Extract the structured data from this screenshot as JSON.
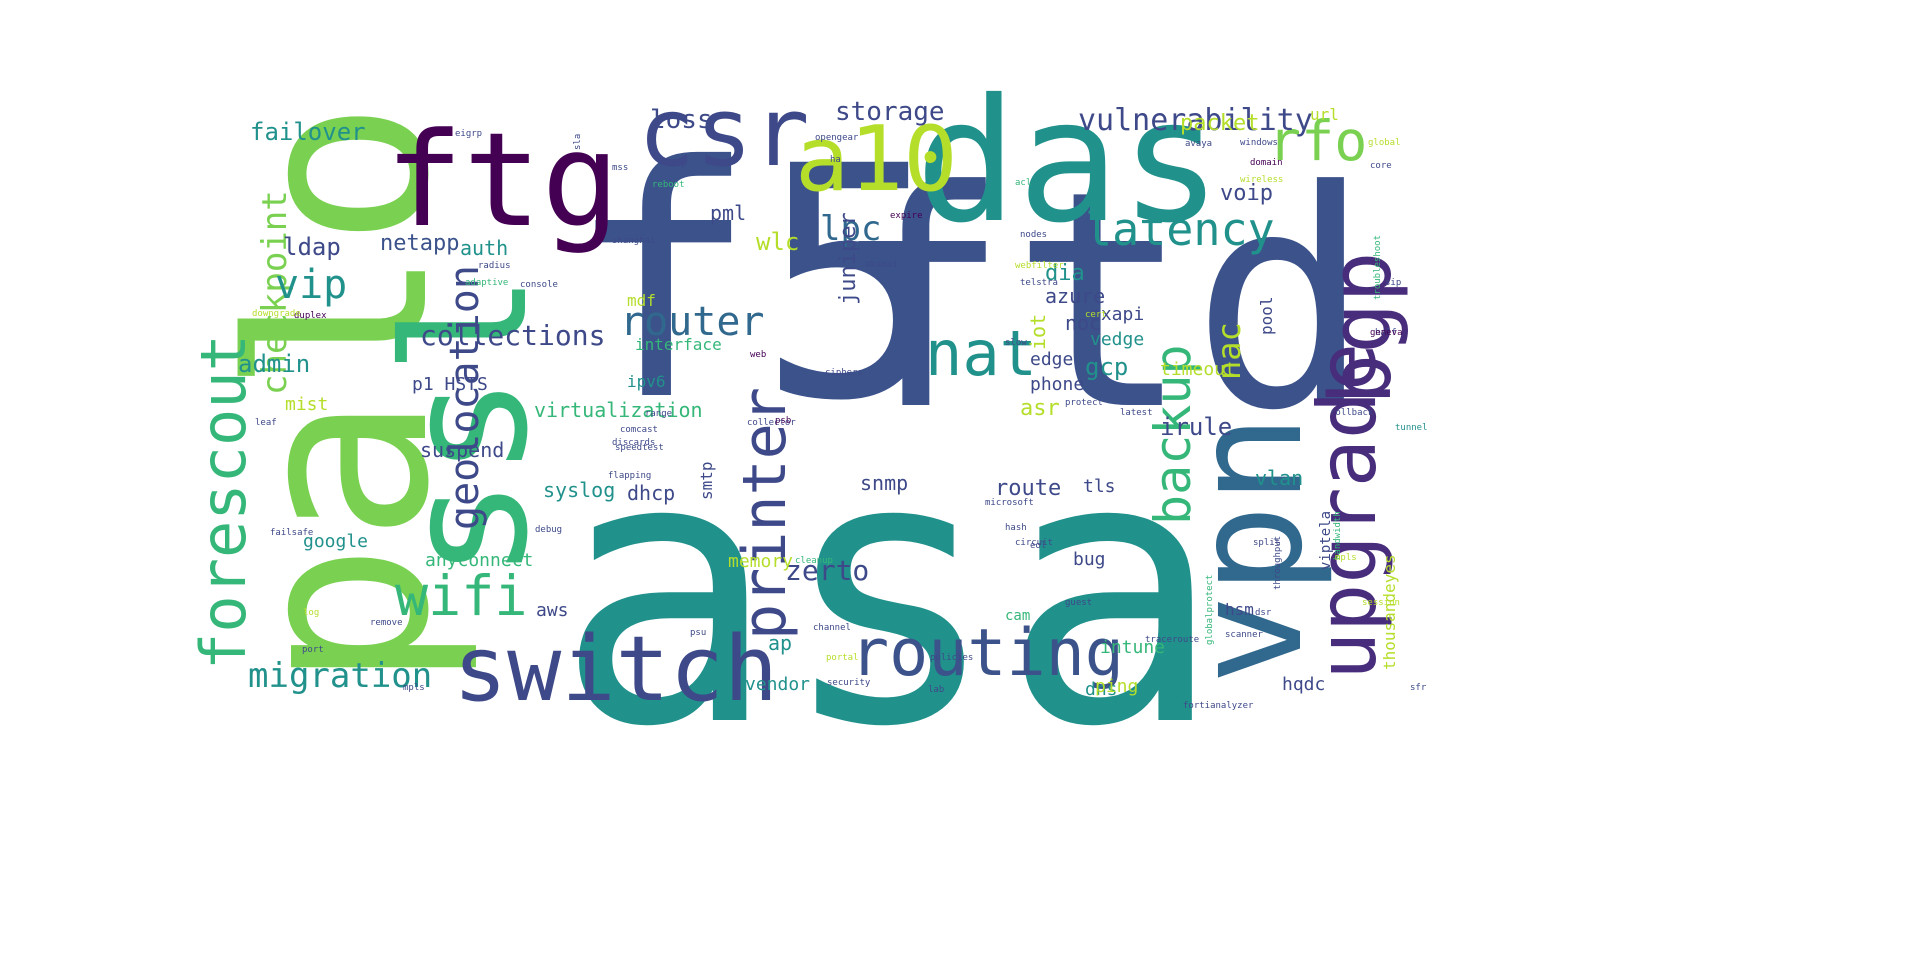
{
  "words": [
    {
      "text": "asa",
      "size": 370,
      "color": "#21918c"
    },
    {
      "text": "f5",
      "size": 320,
      "color": "#3b528b"
    },
    {
      "text": "ftd",
      "size": 300,
      "color": "#3b528b"
    },
    {
      "text": "palo",
      "size": 245,
      "color": "#7ad151"
    },
    {
      "text": "ssl",
      "size": 170,
      "color": "#35b779"
    },
    {
      "text": "das",
      "size": 170,
      "color": "#21918c"
    },
    {
      "text": "vpn",
      "size": 150,
      "color": "#31688e"
    },
    {
      "text": "ftg",
      "size": 130,
      "color": "#440154"
    },
    {
      "text": "csr",
      "size": 95,
      "color": "#3e4989"
    },
    {
      "text": "switch",
      "size": 90,
      "color": "#3e4989"
    },
    {
      "text": "a10",
      "size": 90,
      "color": "#b5de2b"
    },
    {
      "text": "bgp",
      "size": 85,
      "color": "#472d7b"
    },
    {
      "text": "upgrade",
      "size": 80,
      "color": "#472d7b"
    },
    {
      "text": "routing",
      "size": 65,
      "color": "#3b528b"
    },
    {
      "text": "forescout",
      "size": 62,
      "color": "#35b779"
    },
    {
      "text": "printer",
      "size": 60,
      "color": "#3e4989"
    },
    {
      "text": "nat",
      "size": 62,
      "color": "#21918c"
    },
    {
      "text": "rfo",
      "size": 55,
      "color": "#7ad151"
    },
    {
      "text": "wifi",
      "size": 55,
      "color": "#35b779"
    },
    {
      "text": "backup",
      "size": 50,
      "color": "#35b779"
    },
    {
      "text": "latency",
      "size": 45,
      "color": "#21918c"
    },
    {
      "text": "geolocation",
      "size": 40,
      "color": "#3e4989"
    },
    {
      "text": "router",
      "size": 40,
      "color": "#31688e"
    },
    {
      "text": "checkpoint",
      "size": 34,
      "color": "#7ad151"
    },
    {
      "text": "migration",
      "size": 34,
      "color": "#21918c"
    },
    {
      "text": "vip",
      "size": 40,
      "color": "#21918c"
    },
    {
      "text": "lpc",
      "size": 34,
      "color": "#31688e"
    },
    {
      "text": "vulnerability",
      "size": 30,
      "color": "#3e4989"
    },
    {
      "text": "nac",
      "size": 32,
      "color": "#b5de2b"
    },
    {
      "text": "collections",
      "size": 28,
      "color": "#3e4989"
    },
    {
      "text": "storage",
      "size": 26,
      "color": "#3e4989"
    },
    {
      "text": "failover",
      "size": 24,
      "color": "#21918c"
    },
    {
      "text": "loss",
      "size": 26,
      "color": "#3e4989"
    },
    {
      "text": "netapp",
      "size": 22,
      "color": "#3b528b"
    },
    {
      "text": "admin",
      "size": 24,
      "color": "#21918c"
    },
    {
      "text": "zerto",
      "size": 28,
      "color": "#3e4989"
    },
    {
      "text": "gcp",
      "size": 24,
      "color": "#21918c"
    },
    {
      "text": "wlc",
      "size": 24,
      "color": "#b5de2b"
    },
    {
      "text": "dia",
      "size": 22,
      "color": "#21918c"
    },
    {
      "text": "packet",
      "size": 22,
      "color": "#b5de2b"
    },
    {
      "text": "voip",
      "size": 22,
      "color": "#3e4989"
    },
    {
      "text": "irule",
      "size": 24,
      "color": "#3e4989"
    },
    {
      "text": "juniper",
      "size": 22,
      "color": "#3e4989"
    },
    {
      "text": "ldap",
      "size": 24,
      "color": "#3e4989"
    },
    {
      "text": "pml",
      "size": 20,
      "color": "#3e4989"
    },
    {
      "text": "auth",
      "size": 20,
      "color": "#21918c"
    },
    {
      "text": "azure",
      "size": 20,
      "color": "#3e4989"
    },
    {
      "text": "noc",
      "size": 20,
      "color": "#3e4989"
    },
    {
      "text": "vedge",
      "size": 18,
      "color": "#21918c"
    },
    {
      "text": "nxapi",
      "size": 18,
      "color": "#3e4989"
    },
    {
      "text": "iot",
      "size": 20,
      "color": "#b5de2b"
    },
    {
      "text": "asr",
      "size": 22,
      "color": "#b5de2b"
    },
    {
      "text": "edge",
      "size": 18,
      "color": "#3e4989"
    },
    {
      "text": "phone",
      "size": 18,
      "color": "#3e4989"
    },
    {
      "text": "timeout",
      "size": 18,
      "color": "#b5de2b"
    },
    {
      "text": "virtualization",
      "size": 20,
      "color": "#35b779"
    },
    {
      "text": "suspend",
      "size": 20,
      "color": "#3e4989"
    },
    {
      "text": "syslog",
      "size": 20,
      "color": "#21918c"
    },
    {
      "text": "dhcp",
      "size": 20,
      "color": "#3e4989"
    },
    {
      "text": "snmp",
      "size": 20,
      "color": "#3e4989"
    },
    {
      "text": "route",
      "size": 22,
      "color": "#3e4989"
    },
    {
      "text": "tls",
      "size": 18,
      "color": "#3e4989"
    },
    {
      "text": "vlan",
      "size": 20,
      "color": "#21918c"
    },
    {
      "text": "bug",
      "size": 18,
      "color": "#3e4989"
    },
    {
      "text": "google",
      "size": 18,
      "color": "#21918c"
    },
    {
      "text": "anyconnect",
      "size": 18,
      "color": "#35b779"
    },
    {
      "text": "memory",
      "size": 18,
      "color": "#b5de2b"
    },
    {
      "text": "aws",
      "size": 18,
      "color": "#3e4989"
    },
    {
      "text": "ap",
      "size": 20,
      "color": "#21918c"
    },
    {
      "text": "vendor",
      "size": 18,
      "color": "#21918c"
    },
    {
      "text": "intune",
      "size": 18,
      "color": "#35b779"
    },
    {
      "text": "hqdc",
      "size": 18,
      "color": "#3e4989"
    },
    {
      "text": "dns",
      "size": 18,
      "color": "#21918c"
    },
    {
      "text": "ping",
      "size": 18,
      "color": "#b5de2b"
    },
    {
      "text": "hsm",
      "size": 16,
      "color": "#3e4989"
    },
    {
      "text": "mist",
      "size": 18,
      "color": "#b5de2b"
    },
    {
      "text": "p1 HSTS",
      "size": 18,
      "color": "#3e4989"
    },
    {
      "text": "ipv6",
      "size": 16,
      "color": "#21918c"
    },
    {
      "text": "mdf",
      "size": 16,
      "color": "#b5de2b"
    },
    {
      "text": "interface",
      "size": 16,
      "color": "#35b779"
    },
    {
      "text": "smtp",
      "size": 16,
      "color": "#3e4989"
    },
    {
      "text": "pool",
      "size": 16,
      "color": "#3e4989"
    },
    {
      "text": "url",
      "size": 16,
      "color": "#b5de2b"
    },
    {
      "text": "thousandeyes",
      "size": 16,
      "color": "#b5de2b"
    },
    {
      "text": "viptela",
      "size": 14,
      "color": "#3e4989"
    },
    {
      "text": "cam",
      "size": 14,
      "color": "#35b779"
    },
    {
      "text": "shanghai",
      "size": 9,
      "color": "#3e4989"
    },
    {
      "text": "radius",
      "size": 9,
      "color": "#3e4989"
    },
    {
      "text": "adaptive",
      "size": 9,
      "color": "#35b779"
    },
    {
      "text": "duplex",
      "size": 9,
      "color": "#440154"
    },
    {
      "text": "downgrade",
      "size": 9,
      "color": "#b5de2b"
    },
    {
      "text": "console",
      "size": 9,
      "color": "#3e4989"
    },
    {
      "text": "debug",
      "size": 9,
      "color": "#3e4989"
    },
    {
      "text": "discards",
      "size": 9,
      "color": "#3e4989"
    },
    {
      "text": "speedtest",
      "size": 9,
      "color": "#3e4989"
    },
    {
      "text": "flapping",
      "size": 9,
      "color": "#3e4989"
    },
    {
      "text": "cleanup",
      "size": 9,
      "color": "#35b779"
    },
    {
      "text": "fortianalyzer",
      "size": 9,
      "color": "#3e4989"
    },
    {
      "text": "globalprotect",
      "size": 9,
      "color": "#35b779"
    },
    {
      "text": "throughput",
      "size": 9,
      "color": "#3e4989"
    },
    {
      "text": "bandwidth",
      "size": 9,
      "color": "#35b779"
    },
    {
      "text": "rollback",
      "size": 9,
      "color": "#3e4989"
    },
    {
      "text": "tunnel",
      "size": 9,
      "color": "#21918c"
    },
    {
      "text": "troubleshoot",
      "size": 9,
      "color": "#35b779"
    },
    {
      "text": "wireless",
      "size": 9,
      "color": "#b5de2b"
    },
    {
      "text": "traceroute",
      "size": 9,
      "color": "#3e4989"
    },
    {
      "text": "microsoft",
      "size": 9,
      "color": "#3e4989"
    },
    {
      "text": "telstra",
      "size": 9,
      "color": "#3e4989"
    },
    {
      "text": "webfilter",
      "size": 9,
      "color": "#b5de2b"
    },
    {
      "text": "akamai",
      "size": 9,
      "color": "#3e4989"
    },
    {
      "text": "expire",
      "size": 9,
      "color": "#440154"
    },
    {
      "text": "opengear",
      "size": 9,
      "color": "#3e4989"
    },
    {
      "text": "reboot",
      "size": 9,
      "color": "#35b779"
    },
    {
      "text": "session",
      "size": 9,
      "color": "#b5de2b"
    },
    {
      "text": "comcast",
      "size": 9,
      "color": "#3e4989"
    },
    {
      "text": "collector",
      "size": 9,
      "color": "#3e4989"
    },
    {
      "text": "ciphers",
      "size": 9,
      "color": "#3e4989"
    },
    {
      "text": "portal",
      "size": 9,
      "color": "#b5de2b"
    },
    {
      "text": "channel",
      "size": 9,
      "color": "#3e4989"
    },
    {
      "text": "security",
      "size": 9,
      "color": "#3e4989"
    },
    {
      "text": "failsafe",
      "size": 9,
      "color": "#3e4989"
    },
    {
      "text": "remove",
      "size": 9,
      "color": "#3e4989"
    },
    {
      "text": "scanner",
      "size": 9,
      "color": "#3e4989"
    },
    {
      "text": "mpls",
      "size": 9,
      "color": "#3e4989"
    },
    {
      "text": "circuit",
      "size": 9,
      "color": "#3e4989"
    },
    {
      "text": "protect",
      "size": 9,
      "color": "#3e4989"
    },
    {
      "text": "guest",
      "size": 9,
      "color": "#3e4989"
    },
    {
      "text": "split",
      "size": 9,
      "color": "#3e4989"
    },
    {
      "text": "range",
      "size": 9,
      "color": "#3e4989"
    },
    {
      "text": "acl",
      "size": 9,
      "color": "#35b779"
    },
    {
      "text": "core",
      "size": 9,
      "color": "#3e4989"
    },
    {
      "text": "global",
      "size": 9,
      "color": "#b5de2b"
    },
    {
      "text": "windows",
      "size": 9,
      "color": "#3e4989"
    },
    {
      "text": "avaya",
      "size": 9,
      "color": "#3e4989"
    },
    {
      "text": "policies",
      "size": 9,
      "color": "#3e4989"
    },
    {
      "text": "domain",
      "size": 9,
      "color": "#440154"
    },
    {
      "text": "slow",
      "size": 9,
      "color": "#3e4989"
    },
    {
      "text": "latest",
      "size": 9,
      "color": "#3e4989"
    },
    {
      "text": "nodes",
      "size": 9,
      "color": "#3e4989"
    },
    {
      "text": "cert",
      "size": 9,
      "color": "#b5de2b"
    },
    {
      "text": "port",
      "size": 9,
      "color": "#3e4989"
    },
    {
      "text": "leaf",
      "size": 9,
      "color": "#3e4989"
    },
    {
      "text": "hash",
      "size": 9,
      "color": "#3e4989"
    },
    {
      "text": "lab",
      "size": 9,
      "color": "#3e4989"
    },
    {
      "text": "log",
      "size": 9,
      "color": "#b5de2b"
    },
    {
      "text": "psb",
      "size": 9,
      "color": "#440154"
    },
    {
      "text": "half",
      "size": 9,
      "color": "#3e4989"
    },
    {
      "text": "dsr",
      "size": 9,
      "color": "#3e4989"
    },
    {
      "text": "psu",
      "size": 9,
      "color": "#3e4989"
    },
    {
      "text": "eol",
      "size": 9,
      "color": "#3e4989"
    },
    {
      "text": "web",
      "size": 9,
      "color": "#440154"
    },
    {
      "text": "sip",
      "size": 9,
      "color": "#3e4989"
    },
    {
      "text": "ha",
      "size": 9,
      "color": "#3e4989"
    },
    {
      "text": "geneva",
      "size": 9,
      "color": "#440154"
    },
    {
      "text": "mss",
      "size": 9,
      "color": "#3e4989"
    },
    {
      "text": "lacp",
      "size": 9,
      "color": "#3e4989"
    },
    {
      "text": "mpls",
      "size": 9,
      "color": "#b5de2b"
    },
    {
      "text": "eigrp",
      "size": 9,
      "color": "#3e4989"
    },
    {
      "text": "sfr",
      "size": 9,
      "color": "#3e4989"
    },
    {
      "text": "sla",
      "size": 9,
      "color": "#3e4989"
    }
  ]
}
